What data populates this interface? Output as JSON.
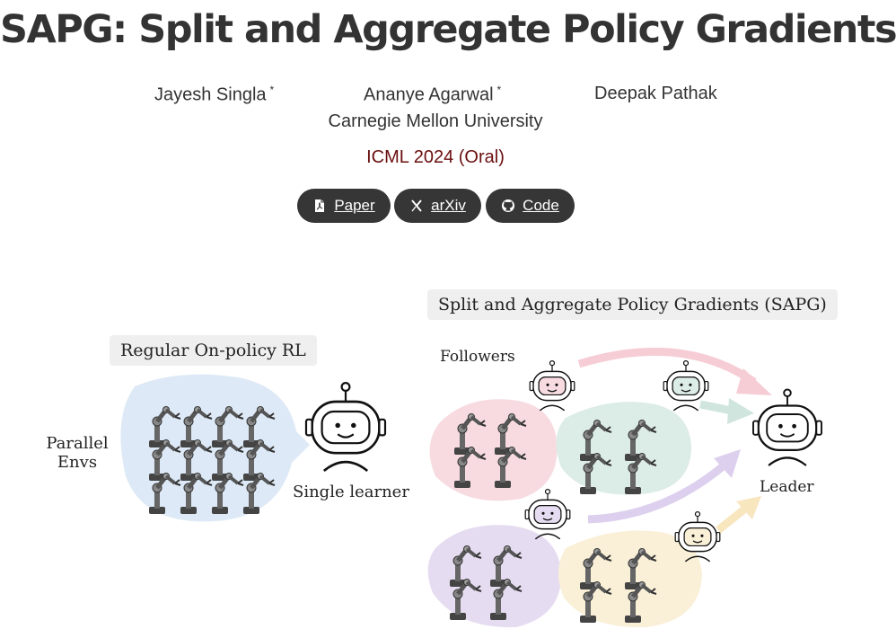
{
  "header": {
    "title": "SAPG: Split and Aggregate Policy Gradients",
    "authors": [
      {
        "name": "Jayesh Singla",
        "mark": "*"
      },
      {
        "name": "Ananye Agarwal",
        "mark": "*"
      },
      {
        "name": "Deepak Pathak",
        "mark": ""
      }
    ],
    "affiliation": "Carnegie Mellon University",
    "venue": "ICML 2024 (Oral)"
  },
  "links": [
    {
      "label": "Paper",
      "icon": "pdf-icon"
    },
    {
      "label": "arXiv",
      "icon": "arxiv-icon"
    },
    {
      "label": "Code",
      "icon": "github-icon"
    }
  ],
  "figure": {
    "left_panel_title": "Regular On-policy RL",
    "parallel_envs_label_1": "Parallel",
    "parallel_envs_label_2": "Envs",
    "single_learner_label": "Single learner",
    "right_panel_title": "Split and Aggregate Policy Gradients (SAPG)",
    "followers_label": "Followers",
    "leader_label": "Leader",
    "colors": {
      "blue_blob": "#dde9f6",
      "pink": "#f7dbe0",
      "green": "#dcece6",
      "purple": "#e6dcf1",
      "yellow": "#faf0d8"
    }
  }
}
